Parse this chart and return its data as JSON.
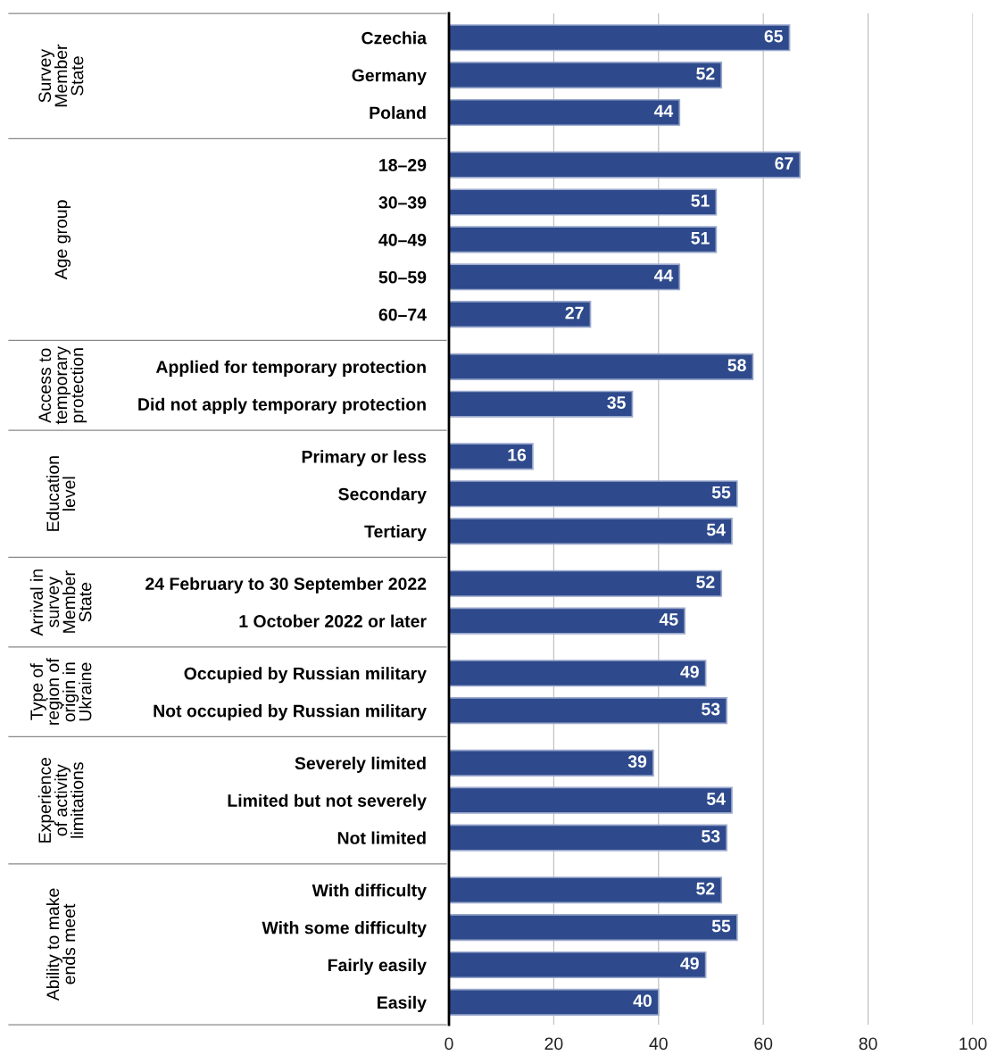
{
  "chart_data": {
    "type": "bar",
    "orientation": "horizontal",
    "categories": [
      "Czechia",
      "Germany",
      "Poland",
      "18–29",
      "30–39",
      "40–49",
      "50–59",
      "60–74",
      "Applied for temporary protection",
      "Did not apply temporary protection",
      "Primary or less",
      "Secondary",
      "Tertiary",
      "24 February to 30 September 2022",
      "1 October 2022 or later",
      "Occupied by Russian military",
      "Not occupied by Russian military",
      "Severely limited",
      "Limited but not severely",
      "Not limited",
      "With difficulty",
      "With some difficulty",
      "Fairly easily",
      "Easily"
    ],
    "values": [
      65,
      52,
      44,
      67,
      51,
      51,
      44,
      27,
      58,
      35,
      16,
      55,
      54,
      52,
      45,
      49,
      53,
      39,
      54,
      53,
      52,
      55,
      49,
      40
    ],
    "color": "#2e4a8c",
    "xlim": [
      0,
      100
    ],
    "xticks": [
      0,
      20,
      40,
      60,
      80,
      100
    ],
    "grid": "x",
    "data_labels": true,
    "annotations": [
      "Survey\nMember\nState",
      "Age group",
      "Access to\ntemporary\nprotection",
      "Education\nlevel",
      "Arrival in\nsurvey\nMember\nState",
      "Type of\nregion of\norigin in\nUkraine",
      "Experience\nof activity\nlimitations",
      "Ability to make\nends meet"
    ]
  }
}
